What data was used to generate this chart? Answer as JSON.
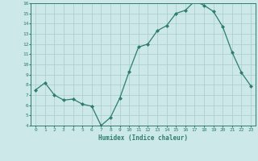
{
  "x": [
    0,
    1,
    2,
    3,
    4,
    5,
    6,
    7,
    8,
    9,
    10,
    11,
    12,
    13,
    14,
    15,
    16,
    17,
    18,
    19,
    20,
    21,
    22,
    23
  ],
  "y": [
    7.5,
    8.2,
    7.0,
    6.5,
    6.6,
    6.1,
    5.9,
    4.0,
    4.8,
    6.7,
    9.3,
    11.7,
    12.0,
    13.3,
    13.8,
    15.0,
    15.3,
    16.2,
    15.8,
    15.2,
    13.7,
    11.2,
    9.2,
    7.9
  ],
  "xlabel": "Humidex (Indice chaleur)",
  "ylim": [
    4,
    16
  ],
  "xlim": [
    -0.5,
    23.5
  ],
  "yticks": [
    4,
    5,
    6,
    7,
    8,
    9,
    10,
    11,
    12,
    13,
    14,
    15,
    16
  ],
  "xticks": [
    0,
    1,
    2,
    3,
    4,
    5,
    6,
    7,
    8,
    9,
    10,
    11,
    12,
    13,
    14,
    15,
    16,
    17,
    18,
    19,
    20,
    21,
    22,
    23
  ],
  "line_color": "#2e7d6e",
  "bg_color": "#cce8e8",
  "grid_color": "#aacccc",
  "marker": "D",
  "marker_size": 2.0,
  "linewidth": 0.9
}
